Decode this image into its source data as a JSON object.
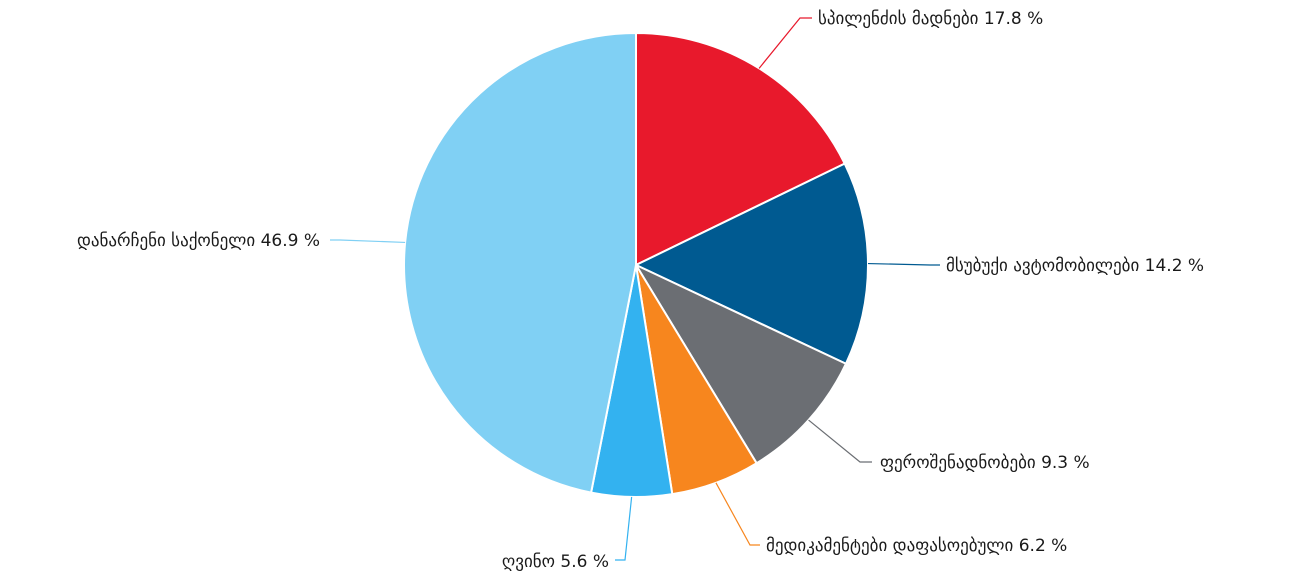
{
  "chart_data": {
    "type": "pie",
    "title": "",
    "slices": [
      {
        "label": "სპილენძის მადნები 17.8 %",
        "value": 17.8,
        "color": "#e8192c"
      },
      {
        "label": "მსუბუქი ავტომობილები 14.2 %",
        "value": 14.2,
        "color": "#005a91"
      },
      {
        "label": "ფეროშენადნობები 9.3 %",
        "value": 9.3,
        "color": "#6b6e73"
      },
      {
        "label": "მედიკამენტები დაფასოებული 6.2 %",
        "value": 6.2,
        "color": "#f7861e"
      },
      {
        "label": "ღვინო 5.6 %",
        "value": 5.6,
        "color": "#33b2f0"
      },
      {
        "label": "დანარჩენი საქონელი 46.9 %",
        "value": 46.9,
        "color": "#80d0f4"
      }
    ],
    "start": "12 o'clock",
    "direction": "clockwise",
    "legend": "none",
    "label_style": "outside labels with leader lines"
  }
}
